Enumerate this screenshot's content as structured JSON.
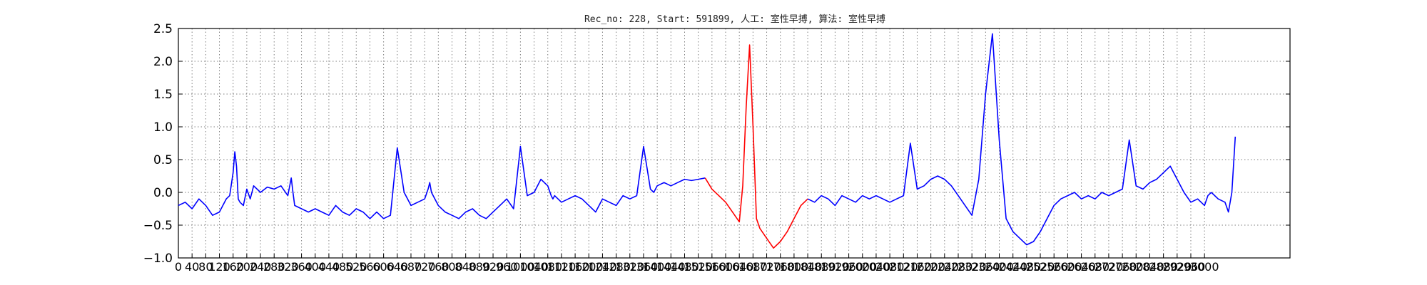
{
  "chart_data": {
    "type": "line",
    "title": "Rec_no: 228, Start: 591899, 人工: 室性早搏, 算法: 室性早搏",
    "xlabel": "",
    "ylabel": "",
    "ylim": [
      -1.0,
      2.5
    ],
    "xlim": [
      0,
      3250
    ],
    "yticks": [
      -1.0,
      -0.5,
      0.0,
      0.5,
      1.0,
      1.5,
      2.0,
      2.5
    ],
    "ytick_labels": [
      "−1.0",
      "−0.5",
      "0.0",
      "0.5",
      "1.0",
      "1.5",
      "2.0",
      "2.5"
    ],
    "xtick_step": 40,
    "xtick_max": 3000,
    "grid": true,
    "colors": {
      "normal": "#0000ff",
      "highlight": "#ff0000",
      "grid": "#7f7f7f",
      "axis": "#000000"
    },
    "series": [
      {
        "color": "normal",
        "x": [
          0,
          20,
          40,
          60,
          80,
          100,
          120,
          140,
          150,
          160,
          165,
          170,
          175,
          180,
          190,
          200,
          210,
          220,
          240,
          260,
          280,
          300,
          320,
          330,
          335,
          340,
          360,
          380,
          400,
          420,
          440,
          460,
          480,
          500,
          520,
          540,
          560,
          580,
          600,
          620,
          640,
          660,
          680,
          700,
          720,
          730,
          735,
          740,
          760,
          780,
          800,
          820,
          840,
          860,
          880,
          900,
          920,
          940,
          960,
          980,
          1000,
          1020,
          1040,
          1060,
          1080,
          1090,
          1095,
          1100,
          1120,
          1140,
          1160,
          1180,
          1200,
          1220,
          1240,
          1260,
          1280,
          1300,
          1320,
          1340,
          1360,
          1380,
          1390,
          1395,
          1400,
          1420,
          1440,
          1460,
          1480,
          1500,
          1520,
          1540
        ],
        "y": [
          -0.2,
          -0.15,
          -0.25,
          -0.1,
          -0.2,
          -0.35,
          -0.3,
          -0.1,
          -0.05,
          0.3,
          0.62,
          0.4,
          -0.1,
          -0.15,
          -0.2,
          0.05,
          -0.1,
          0.1,
          0.0,
          0.08,
          0.05,
          0.1,
          -0.05,
          0.22,
          0.0,
          -0.2,
          -0.25,
          -0.3,
          -0.25,
          -0.3,
          -0.35,
          -0.2,
          -0.3,
          -0.35,
          -0.25,
          -0.3,
          -0.4,
          -0.3,
          -0.4,
          -0.35,
          0.68,
          0.0,
          -0.2,
          -0.15,
          -0.1,
          0.05,
          0.15,
          0.0,
          -0.2,
          -0.3,
          -0.35,
          -0.4,
          -0.3,
          -0.25,
          -0.35,
          -0.4,
          -0.3,
          -0.2,
          -0.1,
          -0.25,
          0.7,
          -0.05,
          0.0,
          0.2,
          0.1,
          -0.05,
          -0.1,
          -0.05,
          -0.15,
          -0.1,
          -0.05,
          -0.1,
          -0.2,
          -0.3,
          -0.1,
          -0.15,
          -0.2,
          -0.05,
          -0.1,
          -0.05,
          0.7,
          0.05,
          0.0,
          0.05,
          0.1,
          0.15,
          0.1,
          0.15,
          0.2,
          0.18,
          0.2,
          0.22
        ]
      },
      {
        "color": "highlight",
        "x": [
          1540,
          1560,
          1580,
          1600,
          1620,
          1640,
          1650,
          1660,
          1670,
          1680,
          1690,
          1700,
          1720,
          1740,
          1760,
          1780,
          1800,
          1820,
          1840
        ],
        "y": [
          0.22,
          0.05,
          -0.05,
          -0.15,
          -0.3,
          -0.45,
          0.1,
          1.3,
          2.25,
          1.0,
          -0.4,
          -0.55,
          -0.7,
          -0.85,
          -0.75,
          -0.6,
          -0.4,
          -0.2,
          -0.1
        ]
      },
      {
        "color": "normal",
        "x": [
          1840,
          1860,
          1880,
          1900,
          1920,
          1940,
          1960,
          1980,
          2000,
          2020,
          2040,
          2060,
          2080,
          2100,
          2120,
          2140,
          2160,
          2180,
          2200,
          2220,
          2240,
          2260,
          2280,
          2300,
          2320,
          2340,
          2360,
          2380,
          2400,
          2420,
          2440,
          2460,
          2480,
          2500,
          2520,
          2540,
          2560,
          2580,
          2600,
          2620,
          2640,
          2660,
          2680,
          2700,
          2720,
          2740,
          2760,
          2780,
          2800,
          2820,
          2840,
          2860,
          2880,
          2900,
          2920,
          2940,
          2960,
          2980,
          3000,
          3010,
          3020
        ],
        "y": [
          -0.1,
          -0.15,
          -0.05,
          -0.1,
          -0.2,
          -0.05,
          -0.1,
          -0.15,
          -0.05,
          -0.1,
          -0.05,
          -0.1,
          -0.15,
          -0.1,
          -0.05,
          0.75,
          0.05,
          0.1,
          0.2,
          0.25,
          0.2,
          0.1,
          -0.05,
          -0.2,
          -0.35,
          0.2,
          1.5,
          2.42,
          0.8,
          -0.4,
          -0.6,
          -0.7,
          -0.8,
          -0.75,
          -0.6,
          -0.4,
          -0.2,
          -0.1,
          -0.05,
          0.0,
          -0.1,
          -0.05,
          -0.1,
          0.0,
          -0.05,
          0.0,
          0.05,
          0.8,
          0.1,
          0.05,
          0.15,
          0.2,
          0.3,
          0.4,
          0.2,
          0.0,
          -0.15,
          -0.1,
          -0.2,
          -0.05,
          0.0
        ]
      },
      {
        "color": "normal",
        "x": [
          3020,
          3040,
          3060,
          3070,
          3080,
          3090
        ],
        "y": [
          0.0,
          -0.1,
          -0.15,
          -0.3,
          0.0,
          0.85
        ]
      }
    ]
  }
}
